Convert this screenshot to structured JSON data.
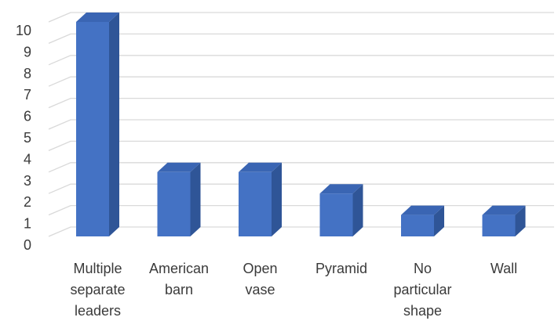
{
  "chart_data": {
    "type": "bar",
    "style": "3d-column",
    "categories": [
      "Multiple separate leaders",
      "American barn",
      "Open vase",
      "Pyramid",
      "No particular shape",
      "Wall"
    ],
    "category_lines": [
      [
        "Multiple",
        "separate",
        "leaders"
      ],
      [
        "American",
        "barn"
      ],
      [
        "Open",
        "vase"
      ],
      [
        "Pyramid"
      ],
      [
        "No",
        "particular",
        "shape"
      ],
      [
        "Wall"
      ]
    ],
    "values": [
      10,
      3,
      3,
      2,
      1,
      1
    ],
    "ylim": [
      0,
      10
    ],
    "yticks": [
      "0",
      "1",
      "2",
      "3",
      "4",
      "5",
      "6",
      "7",
      "8",
      "9",
      "10"
    ],
    "grid": true,
    "legend": "none",
    "colors": {
      "front": "#4472C4",
      "side": "#2F5597",
      "top": "#3A65B3",
      "grid": "#D9D9D9",
      "text": "#3A3A3A"
    }
  }
}
